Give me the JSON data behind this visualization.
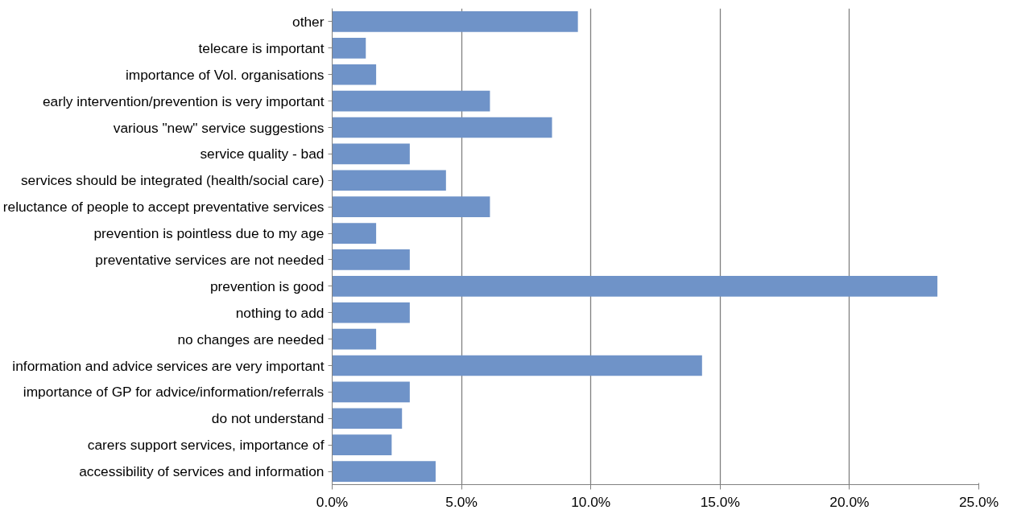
{
  "chart_data": {
    "type": "bar",
    "orientation": "horizontal",
    "categories": [
      "other",
      "telecare is important",
      "importance of Vol. organisations",
      "early intervention/prevention is very important",
      "various \"new\" service suggestions",
      "service quality - bad",
      "services should be integrated (health/social care)",
      "reluctance of people to accept preventative services",
      "prevention is pointless due to my age",
      "preventative services are not needed",
      "prevention is good",
      "nothing to add",
      "no changes are needed",
      "information and advice services are very important",
      "importance of GP for advice/information/referrals",
      "do not understand",
      "carers support services, importance of",
      "accessibility of services and information"
    ],
    "values": [
      9.5,
      1.3,
      1.7,
      6.1,
      8.5,
      3.0,
      4.4,
      6.1,
      1.7,
      3.0,
      23.4,
      3.0,
      1.7,
      14.3,
      3.0,
      2.7,
      2.3,
      4.0
    ],
    "color": "#6f93c8",
    "xlim": [
      0,
      25
    ],
    "xticks": [
      {
        "value": 0,
        "label": "0.0%"
      },
      {
        "value": 5,
        "label": "5.0%"
      },
      {
        "value": 10,
        "label": "10.0%"
      },
      {
        "value": 15,
        "label": "15.0%"
      },
      {
        "value": 20,
        "label": "20.0%"
      },
      {
        "value": 25,
        "label": "25.0%"
      }
    ],
    "grid": "x"
  }
}
